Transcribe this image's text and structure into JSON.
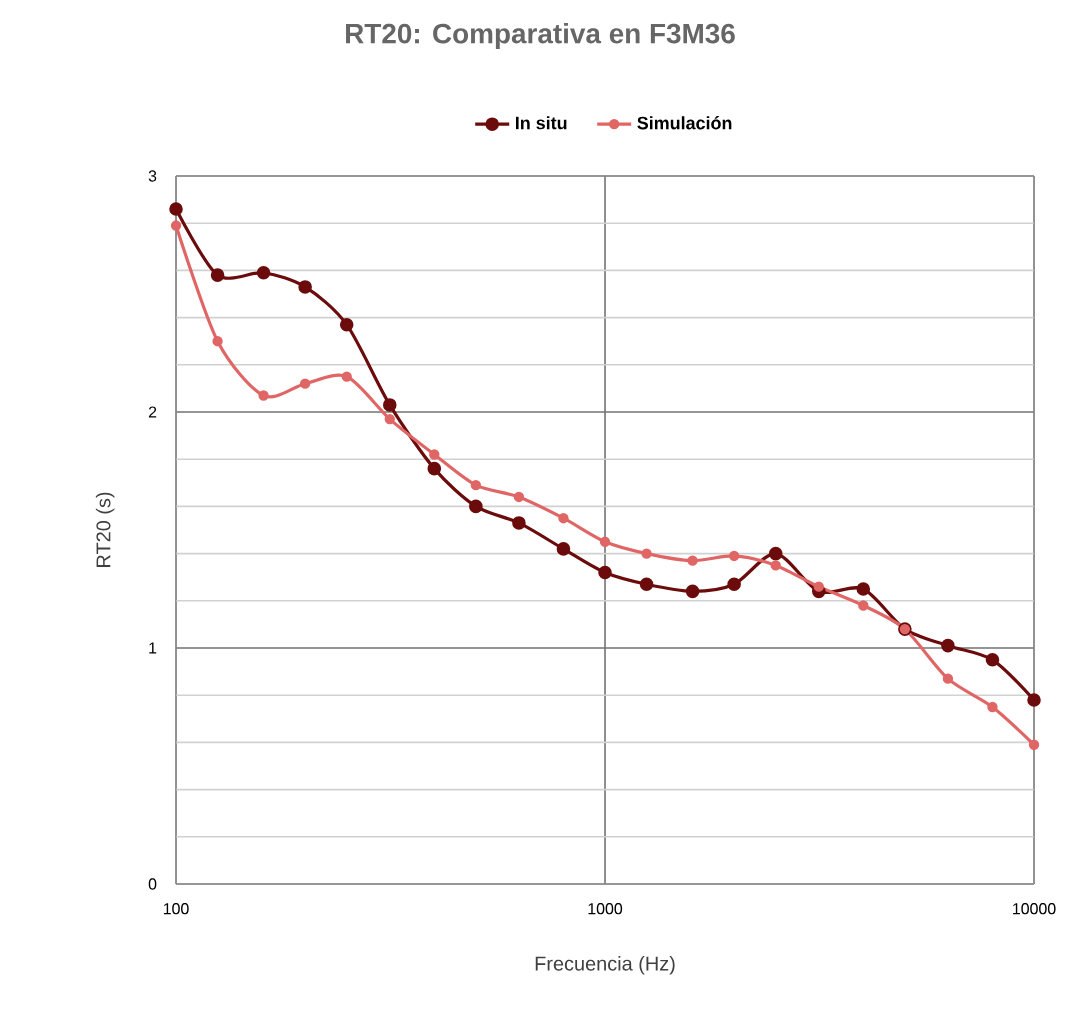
{
  "chart_data": {
    "type": "line",
    "title": "RT20: Comparativa en F3M36",
    "xlabel": "Frecuencia (Hz)",
    "ylabel": "RT20 (s)",
    "x": [
      100,
      125,
      160,
      200,
      250,
      315,
      400,
      500,
      630,
      800,
      1000,
      1250,
      1600,
      2000,
      2500,
      3150,
      4000,
      5000,
      6300,
      8000,
      10000
    ],
    "series": [
      {
        "name": "In situ",
        "color": "#6b0b0b",
        "values": [
          2.86,
          2.58,
          2.59,
          2.53,
          2.37,
          2.03,
          1.76,
          1.6,
          1.53,
          1.42,
          1.32,
          1.27,
          1.24,
          1.27,
          1.4,
          1.24,
          1.25,
          1.08,
          1.01,
          0.95,
          0.78
        ]
      },
      {
        "name": "Simulación",
        "color": "#e06666",
        "values": [
          2.79,
          2.3,
          2.07,
          2.12,
          2.15,
          1.97,
          1.82,
          1.69,
          1.64,
          1.55,
          1.45,
          1.4,
          1.37,
          1.39,
          1.35,
          1.26,
          1.18,
          1.08,
          0.87,
          0.75,
          0.59
        ]
      }
    ],
    "xlim": [
      100,
      10000
    ],
    "ylim": [
      0,
      3
    ],
    "xticks": [
      100,
      1000,
      10000
    ],
    "yticks": [
      0,
      1,
      2,
      3
    ],
    "log": "x",
    "grid": true,
    "legend": "top",
    "marker": "circle",
    "line_style": "solid"
  }
}
